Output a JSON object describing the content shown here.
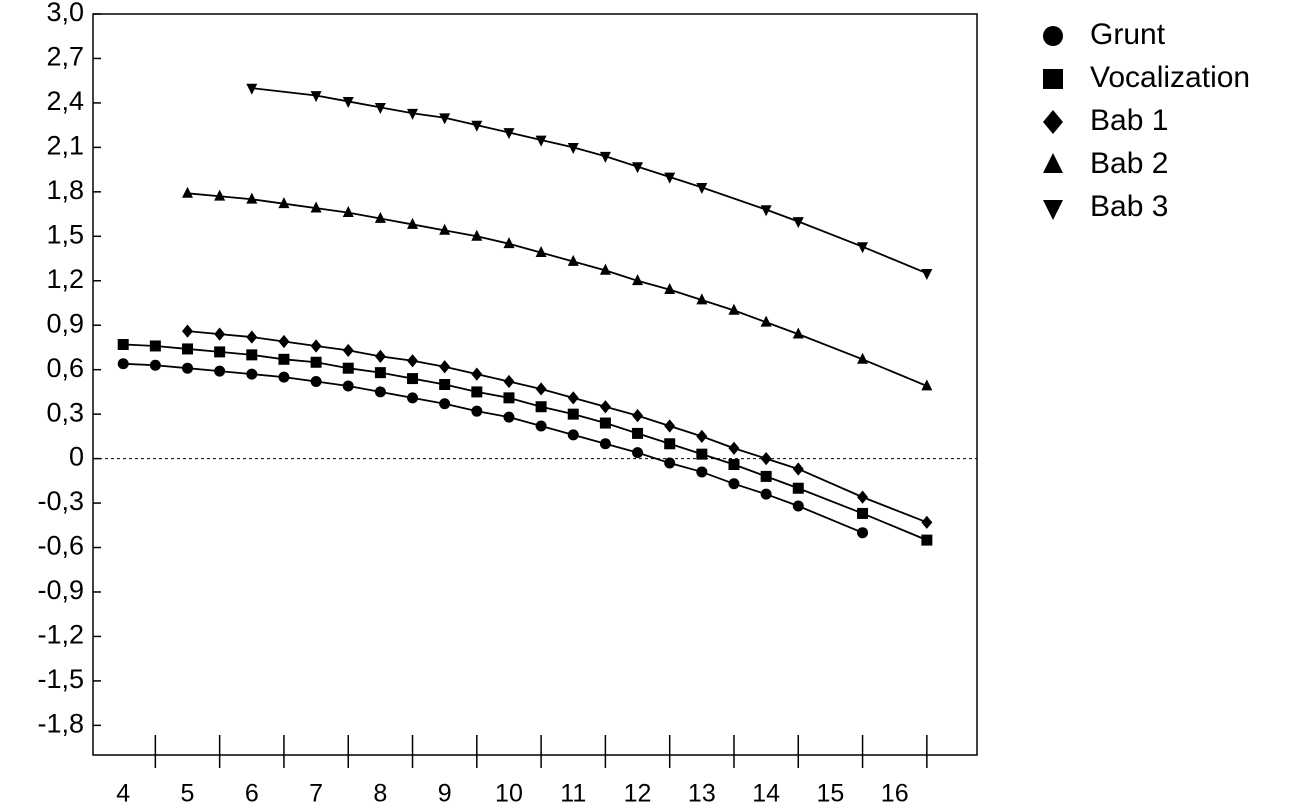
{
  "chart_data": {
    "type": "line",
    "xlim": [
      3.53,
      17.28
    ],
    "ylim": [
      -2,
      3
    ],
    "xticks": [
      4,
      5,
      6,
      7,
      8,
      9,
      10,
      11,
      12,
      13,
      14,
      15,
      16
    ],
    "xtick_marks": [
      4.5,
      5.5,
      6.5,
      7.5,
      8.5,
      9.5,
      10.5,
      11.5,
      12.5,
      13.5,
      14.5,
      15.5,
      16.5
    ],
    "yticks": [
      {
        "value": 3,
        "label": "3,0"
      },
      {
        "value": 2.7,
        "label": "2,7"
      },
      {
        "value": 2.4,
        "label": "2,4"
      },
      {
        "value": 2.1,
        "label": "2,1"
      },
      {
        "value": 1.8,
        "label": "1,8"
      },
      {
        "value": 1.5,
        "label": "1,5"
      },
      {
        "value": 1.2,
        "label": "1,2"
      },
      {
        "value": 0.9,
        "label": "0,9"
      },
      {
        "value": 0.6,
        "label": "0,6"
      },
      {
        "value": 0.3,
        "label": "0,3"
      },
      0,
      {
        "value": -0.3,
        "label": "-0,3"
      },
      {
        "value": -0.6,
        "label": "-0,6"
      },
      {
        "value": -0.9,
        "label": "-0,9"
      },
      {
        "value": -1.2,
        "label": "-1,2"
      },
      {
        "value": -1.5,
        "label": "-1,5"
      },
      {
        "value": -1.8,
        "label": "-1,8"
      }
    ],
    "zero_line": true,
    "legend": "outside-top-right",
    "series": [
      {
        "name": "Grunt",
        "color": "#000000",
        "marker": "circle",
        "x": [
          4,
          4.5,
          5,
          5.5,
          6,
          6.5,
          7,
          7.5,
          8,
          8.5,
          9,
          9.5,
          10,
          10.5,
          11,
          11.5,
          12,
          12.5,
          13,
          13.5,
          14,
          14.5,
          15.5
        ],
        "values": [
          0.64,
          0.63,
          0.61,
          0.59,
          0.57,
          0.55,
          0.52,
          0.49,
          0.45,
          0.41,
          0.37,
          0.32,
          0.28,
          0.22,
          0.16,
          0.1,
          0.04,
          -0.03,
          -0.09,
          -0.17,
          -0.24,
          -0.32,
          -0.5
        ]
      },
      {
        "name": "Vocalization",
        "color": "#000000",
        "marker": "square",
        "x": [
          4,
          4.5,
          5,
          5.5,
          6,
          6.5,
          7,
          7.5,
          8,
          8.5,
          9,
          9.5,
          10,
          10.5,
          11,
          11.5,
          12,
          12.5,
          13,
          13.5,
          14,
          14.5,
          15.5,
          16.5
        ],
        "values": [
          0.77,
          0.76,
          0.74,
          0.72,
          0.7,
          0.67,
          0.65,
          0.61,
          0.58,
          0.54,
          0.5,
          0.45,
          0.41,
          0.35,
          0.3,
          0.24,
          0.17,
          0.1,
          0.03,
          -0.04,
          -0.12,
          -0.2,
          -0.37,
          -0.55
        ]
      },
      {
        "name": "Bab 1",
        "color": "#000000",
        "marker": "diamond",
        "x": [
          5,
          5.5,
          6,
          6.5,
          7,
          7.5,
          8,
          8.5,
          9,
          9.5,
          10,
          10.5,
          11,
          11.5,
          12,
          12.5,
          13,
          13.5,
          14,
          14.5,
          15.5,
          16.5
        ],
        "values": [
          0.86,
          0.84,
          0.82,
          0.79,
          0.76,
          0.73,
          0.69,
          0.66,
          0.62,
          0.57,
          0.52,
          0.47,
          0.41,
          0.35,
          0.29,
          0.22,
          0.15,
          0.07,
          0,
          -0.07,
          -0.26,
          -0.43
        ]
      },
      {
        "name": "Bab 2",
        "color": "#000000",
        "marker": "triangle-up",
        "x": [
          5,
          5.5,
          6,
          6.5,
          7,
          7.5,
          8,
          8.5,
          9,
          9.5,
          10,
          10.5,
          11,
          11.5,
          12,
          12.5,
          13,
          13.5,
          14,
          14.5,
          15.5,
          16.5
        ],
        "values": [
          1.79,
          1.77,
          1.75,
          1.72,
          1.69,
          1.66,
          1.62,
          1.58,
          1.54,
          1.5,
          1.45,
          1.39,
          1.33,
          1.27,
          1.2,
          1.14,
          1.07,
          1.0,
          0.92,
          0.84,
          0.67,
          0.49
        ]
      },
      {
        "name": "Bab 3",
        "color": "#000000",
        "marker": "triangle-down",
        "x": [
          6,
          7,
          7.5,
          8,
          8.5,
          9,
          9.5,
          10,
          10.5,
          11,
          11.5,
          12,
          12.5,
          13,
          14,
          14.5,
          15.5,
          16.5
        ],
        "values": [
          2.5,
          2.45,
          2.41,
          2.37,
          2.33,
          2.3,
          2.25,
          2.2,
          2.15,
          2.1,
          2.04,
          1.97,
          1.9,
          1.83,
          1.68,
          1.6,
          1.43,
          1.25
        ]
      }
    ]
  }
}
